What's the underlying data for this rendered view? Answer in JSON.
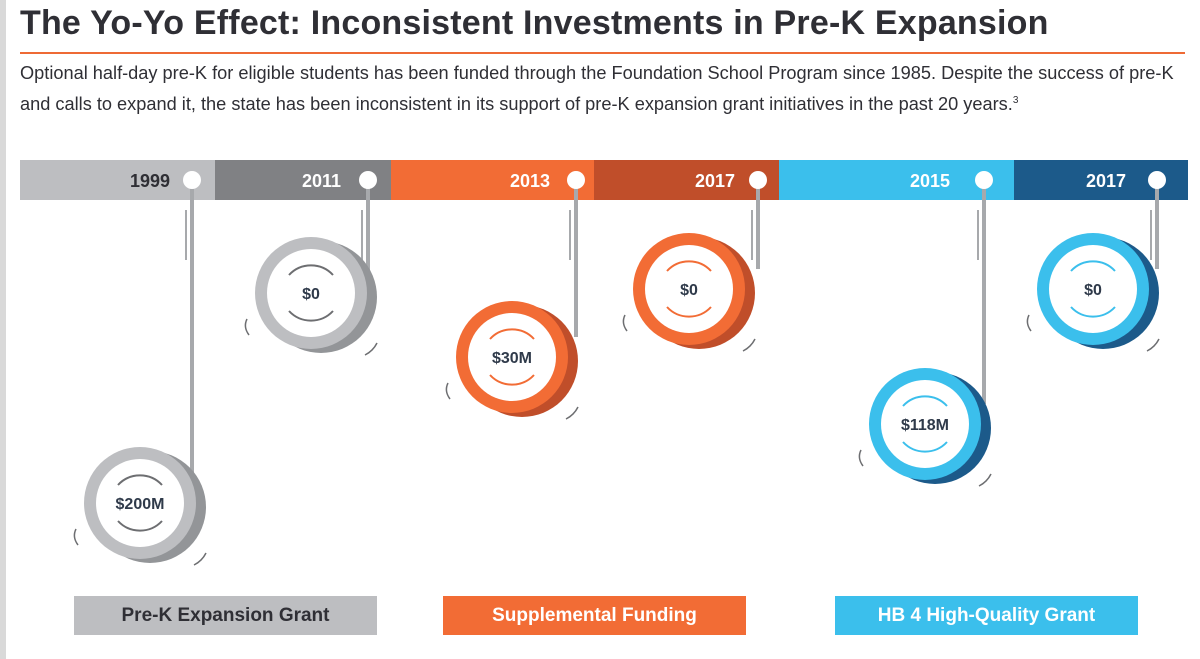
{
  "title": "The Yo-Yo Effect: Inconsistent Investments in Pre-K Expansion",
  "intro": {
    "text": "Optional half-day pre-K for eligible students has been funded through the Foundation School Program since 1985. Despite the success of pre-K and calls to expand it, the state has been inconsistent in its support of pre-K expansion grant initiatives in the past 20 years.",
    "footnote": "3"
  },
  "colors": {
    "accent_rule": "#ee6a35",
    "gray_light": "#bdbec1",
    "gray_dark": "#808184",
    "orange": "#f26c35",
    "orange_dark": "#c04e2a",
    "blue": "#3bbfec",
    "blue_dark": "#1c5a8a",
    "navy_text": "#2f3a4a"
  },
  "chart_data": {
    "type": "timeline-yoyo",
    "categories": [
      "1999",
      "2011",
      "2013",
      "2017",
      "2015",
      "2017"
    ],
    "values_label": [
      "$200M",
      "$0",
      "$30M",
      "$0",
      "$118M",
      "$0"
    ],
    "values": [
      200,
      0,
      30,
      0,
      118,
      0
    ],
    "units": "$M",
    "series": [
      {
        "name": "Pre-K Expansion Grant",
        "color": "#bdbec1",
        "points": [
          0,
          1
        ]
      },
      {
        "name": "Supplemental Funding",
        "color": "#f26c35",
        "points": [
          2,
          3
        ]
      },
      {
        "name": "HB 4 High-Quality Grant",
        "color": "#3bbfec",
        "points": [
          4,
          5
        ]
      }
    ]
  },
  "legend": [
    {
      "label": "Pre-K Expansion Grant",
      "bg": "#bdbec1",
      "fg": "#2f2f35"
    },
    {
      "label": "Supplemental Funding",
      "bg": "#f26c35",
      "fg": "#ffffff"
    },
    {
      "label": "HB 4 High-Quality Grant",
      "bg": "#3bbfec",
      "fg": "#ffffff"
    }
  ]
}
